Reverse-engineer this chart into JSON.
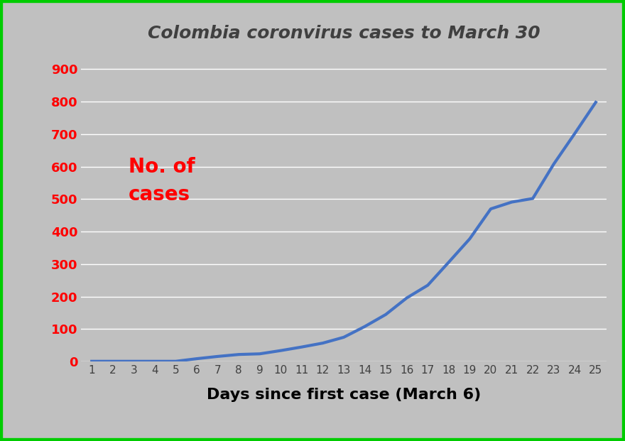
{
  "title": "Colombia coronvirus cases to March 30",
  "xlabel": "Days since first case (March 6)",
  "ylabel_line1": "No. of",
  "ylabel_line2": "cases",
  "x_values": [
    1,
    2,
    3,
    4,
    5,
    6,
    7,
    8,
    9,
    10,
    11,
    12,
    13,
    14,
    15,
    16,
    17,
    18,
    19,
    20,
    21,
    22,
    23,
    24,
    25
  ],
  "y_values": [
    1,
    1,
    1,
    1,
    1,
    9,
    16,
    22,
    24,
    34,
    45,
    57,
    75,
    108,
    145,
    196,
    235,
    306,
    378,
    470,
    491,
    502,
    608,
    702,
    798
  ],
  "ylim": [
    0,
    950
  ],
  "xlim": [
    0.5,
    25.5
  ],
  "yticks": [
    0,
    100,
    200,
    300,
    400,
    500,
    600,
    700,
    800,
    900
  ],
  "xticks": [
    1,
    2,
    3,
    4,
    5,
    6,
    7,
    8,
    9,
    10,
    11,
    12,
    13,
    14,
    15,
    16,
    17,
    18,
    19,
    20,
    21,
    22,
    23,
    24,
    25
  ],
  "line_color": "#4472C4",
  "line_width": 3.0,
  "background_color": "#C0C0C0",
  "plot_bg_color": "#C0C0C0",
  "title_color": "#404040",
  "title_fontsize": 18,
  "title_style": "italic",
  "title_weight": "bold",
  "ylabel_color": "#FF0000",
  "ylabel_fontsize": 20,
  "ylabel_weight": "bold",
  "xlabel_color": "#000000",
  "xlabel_fontsize": 16,
  "xlabel_weight": "bold",
  "ytick_color": "#FF0000",
  "ytick_fontsize": 13,
  "xtick_color": "#404040",
  "xtick_fontsize": 11,
  "grid_color": "#FFFFFF",
  "border_color": "#00CC00",
  "border_width": 6
}
